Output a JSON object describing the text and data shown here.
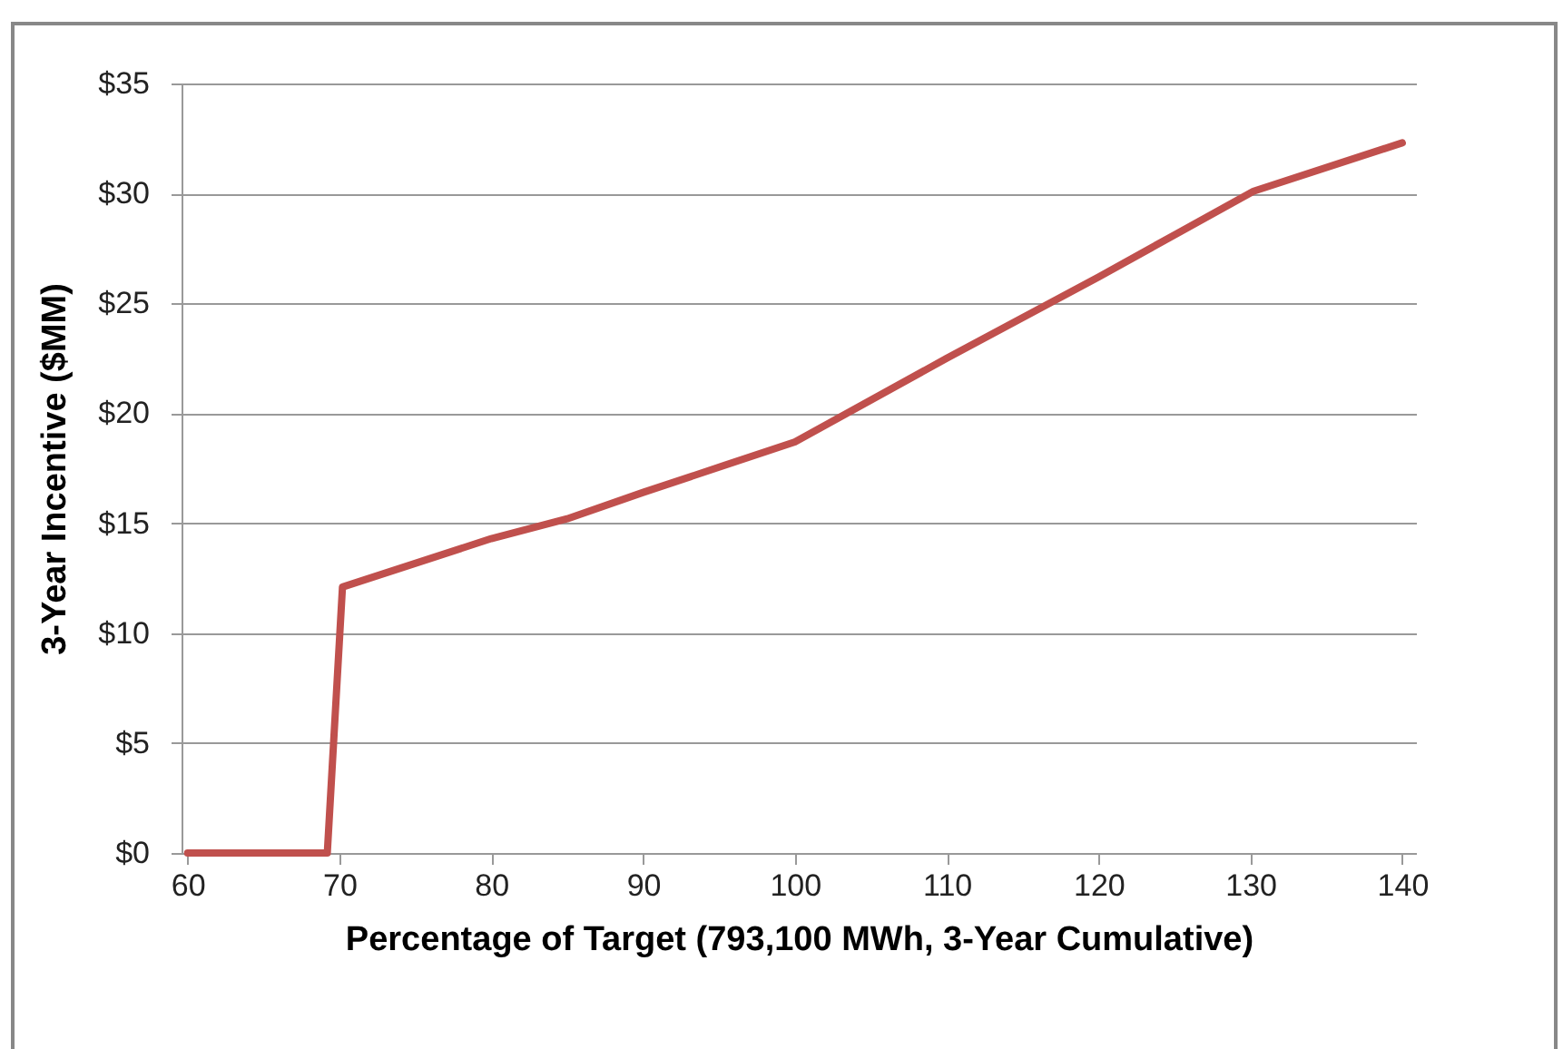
{
  "chart_data": {
    "type": "line",
    "xlabel": "Percentage of Target (793,100 MWh, 3-Year Cumulative)",
    "ylabel": "3-Year Incentive ($MM)",
    "series": [
      {
        "color": "#c0504d",
        "x": [
          60,
          69.2,
          70.2,
          80,
          85,
          90,
          100,
          110,
          120,
          130.2,
          140
        ],
        "values": [
          0,
          0,
          12.1,
          14.3,
          15.2,
          16.4,
          18.7,
          22.5,
          26.2,
          30.1,
          32.3
        ]
      }
    ],
    "xlim": [
      59.6,
      140.9
    ],
    "xticks": [
      60,
      70,
      80,
      90,
      100,
      110,
      120,
      130,
      140
    ],
    "ylim": [
      0,
      35
    ],
    "yticks": [
      {
        "value": 0,
        "label": "$0"
      },
      {
        "value": 5,
        "label": "$5"
      },
      {
        "value": 10,
        "label": "$10"
      },
      {
        "value": 15,
        "label": "$15"
      },
      {
        "value": 20,
        "label": "$20"
      },
      {
        "value": 25,
        "label": "$25"
      },
      {
        "value": 30,
        "label": "$30"
      },
      {
        "value": 35,
        "label": "$35"
      }
    ],
    "grid": "y",
    "legend": false,
    "marker": "none",
    "line_style": "solid"
  }
}
